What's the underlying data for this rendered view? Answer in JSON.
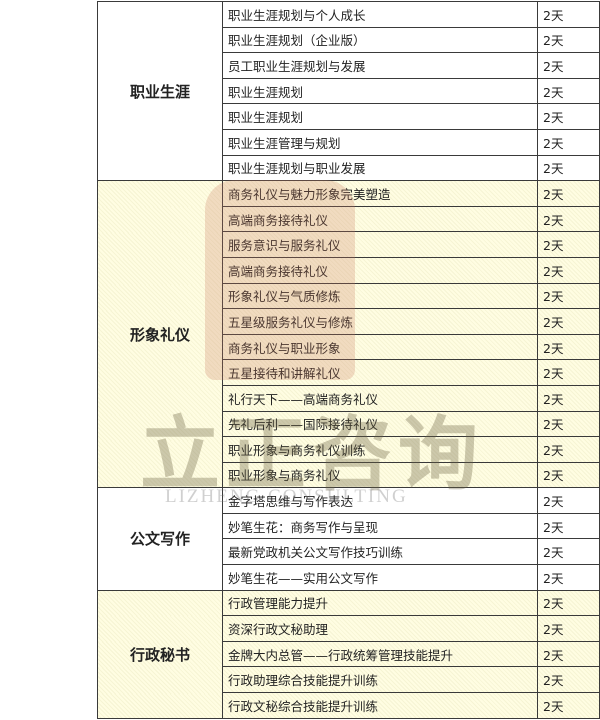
{
  "groups": [
    {
      "category": "职业生涯",
      "highlight": false,
      "courses": [
        {
          "name": "职业生涯规划与个人成长",
          "days": "2天"
        },
        {
          "name": "职业生涯规划（企业版）",
          "days": "2天"
        },
        {
          "name": "员工职业生涯规划与发展",
          "days": "2天"
        },
        {
          "name": "职业生涯规划",
          "days": "2天"
        },
        {
          "name": "职业生涯规划",
          "days": "2天"
        },
        {
          "name": "职业生涯管理与规划",
          "days": "2天"
        },
        {
          "name": "职业生涯规划与职业发展",
          "days": "2天"
        }
      ]
    },
    {
      "category": "形象礼仪",
      "highlight": true,
      "courses": [
        {
          "name": "商务礼仪与魅力形象完美塑造",
          "days": "2天"
        },
        {
          "name": "高端商务接待礼仪",
          "days": "2天"
        },
        {
          "name": "服务意识与服务礼仪",
          "days": "2天"
        },
        {
          "name": "高端商务接待礼仪",
          "days": "2天"
        },
        {
          "name": "形象礼仪与气质修炼",
          "days": "2天"
        },
        {
          "name": "五星级服务礼仪与修炼",
          "days": "2天"
        },
        {
          "name": "商务礼仪与职业形象",
          "days": "2天"
        },
        {
          "name": "五星接待和讲解礼仪",
          "days": "2天"
        },
        {
          "name": "礼行天下——高端商务礼仪",
          "days": "2天"
        },
        {
          "name": "先礼后利——国际接待礼仪",
          "days": "2天"
        },
        {
          "name": "职业形象与商务礼仪训练",
          "days": "2天"
        },
        {
          "name": "职业形象与商务礼仪",
          "days": "2天"
        }
      ]
    },
    {
      "category": "公文写作",
      "highlight": false,
      "courses": [
        {
          "name": "金字塔思维与写作表达",
          "days": "2天"
        },
        {
          "name": "妙笔生花：商务写作与呈现",
          "days": "2天"
        },
        {
          "name": "最新党政机关公文写作技巧训练",
          "days": "2天"
        },
        {
          "name": "妙笔生花——实用公文写作",
          "days": "2天"
        }
      ]
    },
    {
      "category": "行政秘书",
      "highlight": true,
      "courses": [
        {
          "name": "行政管理能力提升",
          "days": "2天"
        },
        {
          "name": "资深行政文秘助理",
          "days": "2天"
        },
        {
          "name": "金牌大内总管——行政统筹管理技能提升",
          "days": "2天"
        },
        {
          "name": "行政助理综合技能提升训练",
          "days": "2天"
        },
        {
          "name": "行政文秘综合技能提升训练",
          "days": "2天"
        }
      ]
    }
  ],
  "watermark": {
    "cn": "立正咨询",
    "en": "LIZHENG CONSULTING"
  }
}
